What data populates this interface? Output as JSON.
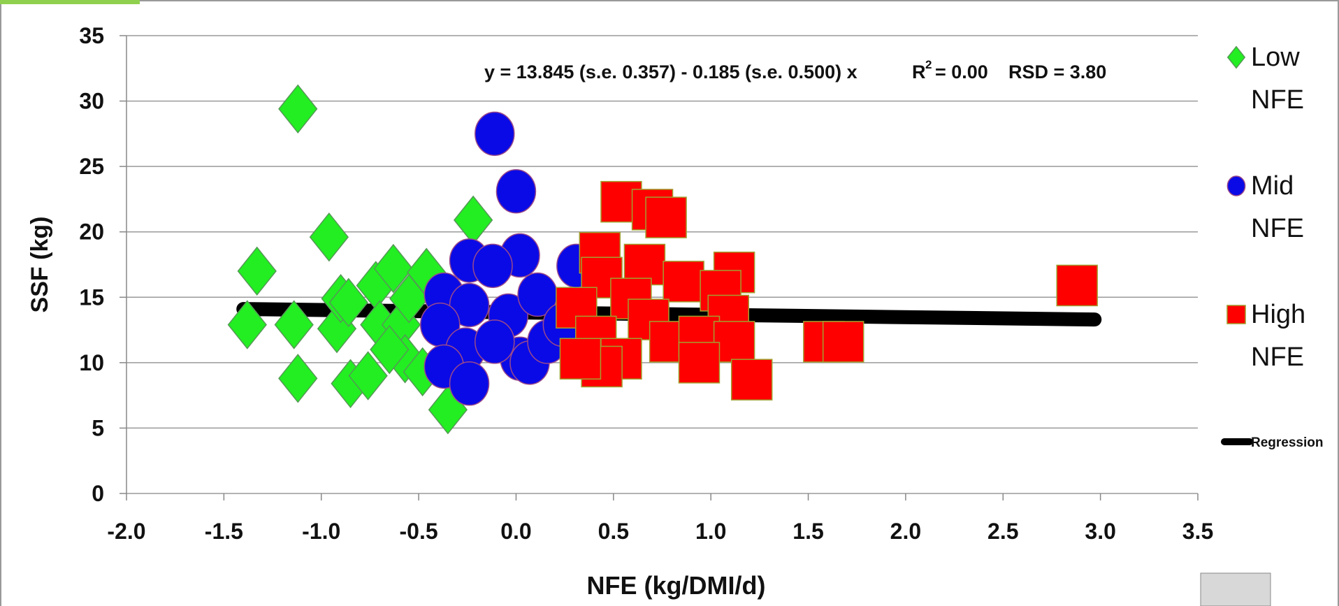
{
  "chart_data": {
    "type": "scatter",
    "x_label": "NFE (kg/DMI/d)",
    "y_label": "SSF (kg)",
    "annotations": [
      "y = 13.845 (s.e. 0.357) - 0.185 (s.e. 0.500) x",
      "R",
      "2",
      "= 0.00",
      "RSD = 3.80"
    ],
    "xlim": [
      -2.0,
      3.5
    ],
    "xticks": [
      {
        "value": -2,
        "label": "-2.0"
      },
      {
        "value": -1.5,
        "label": "-1.5"
      },
      {
        "value": -1,
        "label": "-1.0"
      },
      {
        "value": -0.5,
        "label": "-0.5"
      },
      {
        "value": 0,
        "label": "0.0"
      },
      {
        "value": 0.5,
        "label": "0.5"
      },
      {
        "value": 1,
        "label": "1.0"
      },
      {
        "value": 1.5,
        "label": "1.5"
      },
      {
        "value": 2,
        "label": "2.0"
      },
      {
        "value": 2.5,
        "label": "2.5"
      },
      {
        "value": 3,
        "label": "3.0"
      },
      {
        "value": 3.5,
        "label": "3.5"
      }
    ],
    "ylim": [
      0,
      35
    ],
    "yticks": [
      0,
      5,
      10,
      15,
      20,
      25,
      30,
      35
    ],
    "grid": true,
    "legend": "right",
    "series": [
      {
        "name": "Regression",
        "marker": "line",
        "color": "#000000",
        "x": [
          -1.4,
          2.97
        ],
        "values": [
          14.1,
          13.3
        ]
      },
      {
        "name": "Low NFE",
        "marker": "diamond",
        "color": "#22ee22",
        "x": [
          -1.12,
          -1.33,
          -1.38,
          -1.14,
          -1.12,
          -0.96,
          -0.92,
          -0.9,
          -0.86,
          -0.85,
          -0.76,
          -0.72,
          -0.7,
          -0.63,
          -0.59,
          -0.57,
          -0.46,
          -0.48,
          -0.35,
          -0.22,
          -0.65,
          -0.55
        ],
        "values": [
          29.4,
          17.0,
          12.9,
          12.9,
          8.8,
          19.6,
          12.6,
          14.9,
          14.6,
          8.4,
          9.0,
          15.9,
          12.9,
          17.2,
          12.9,
          10.3,
          16.9,
          9.3,
          6.4,
          20.9,
          11.0,
          14.9
        ]
      },
      {
        "name": "Mid NFE",
        "marker": "circle",
        "color": "#0a0ae6",
        "x": [
          -0.11,
          0.0,
          0.02,
          -0.24,
          -0.12,
          0.31,
          -0.37,
          -0.24,
          -0.39,
          -0.26,
          -0.37,
          -0.24,
          -0.04,
          0.11,
          0.02,
          0.07,
          0.16,
          -0.11,
          0.24
        ],
        "values": [
          27.5,
          23.1,
          18.2,
          17.8,
          17.4,
          17.4,
          15.2,
          14.4,
          12.9,
          11.0,
          9.7,
          8.4,
          13.6,
          15.2,
          10.3,
          10.0,
          11.6,
          11.6,
          12.9
        ]
      },
      {
        "name": "High NFE",
        "marker": "square",
        "color": "#ff0000",
        "x": [
          0.54,
          0.7,
          0.77,
          0.43,
          0.44,
          0.66,
          0.86,
          1.12,
          1.05,
          0.31,
          0.59,
          0.68,
          1.09,
          0.41,
          0.54,
          0.79,
          0.94,
          1.12,
          0.94,
          1.21,
          0.44,
          0.33,
          2.88,
          1.58,
          1.68
        ],
        "values": [
          22.3,
          21.7,
          21.1,
          18.4,
          16.5,
          17.5,
          16.2,
          16.9,
          15.5,
          14.2,
          14.9,
          13.3,
          13.6,
          12.0,
          10.3,
          11.6,
          12.0,
          11.6,
          10.0,
          8.7,
          9.7,
          10.3,
          15.9,
          11.6,
          11.6
        ]
      }
    ]
  }
}
